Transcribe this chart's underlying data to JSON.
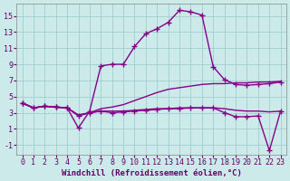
{
  "xlabel": "Windchill (Refroidissement éolien,°C)",
  "background_color": "#cceaea",
  "grid_color": "#9ecece",
  "line_color": "#880088",
  "xlim": [
    -0.5,
    23.5
  ],
  "ylim": [
    -2.2,
    16.5
  ],
  "xticks": [
    0,
    1,
    2,
    3,
    4,
    5,
    6,
    7,
    8,
    9,
    10,
    11,
    12,
    13,
    14,
    15,
    16,
    17,
    18,
    19,
    20,
    21,
    22,
    23
  ],
  "yticks": [
    -1,
    1,
    3,
    5,
    7,
    9,
    11,
    13,
    15
  ],
  "series": [
    {
      "y": [
        4.2,
        3.6,
        3.8,
        3.7,
        3.6,
        1.1,
        3.2,
        8.8,
        9.0,
        9.0,
        11.2,
        12.8,
        13.4,
        14.2,
        15.7,
        15.5,
        15.1,
        8.7,
        7.1,
        6.5,
        6.4,
        6.5,
        6.6,
        6.8
      ],
      "marker": "+",
      "markersize": 5,
      "linewidth": 1.0,
      "zorder": 3
    },
    {
      "y": [
        4.2,
        3.6,
        3.8,
        3.7,
        3.6,
        2.6,
        3.0,
        3.2,
        3.0,
        3.1,
        3.2,
        3.3,
        3.4,
        3.5,
        3.5,
        3.6,
        3.6,
        3.6,
        3.0,
        2.5,
        2.5,
        2.6,
        -1.7,
        3.2
      ],
      "marker": "+",
      "markersize": 5,
      "linewidth": 1.0,
      "zorder": 3
    },
    {
      "y": [
        4.2,
        3.6,
        3.8,
        3.7,
        3.6,
        2.7,
        3.0,
        3.5,
        3.7,
        4.0,
        4.5,
        5.0,
        5.5,
        5.9,
        6.1,
        6.3,
        6.5,
        6.6,
        6.6,
        6.7,
        6.7,
        6.8,
        6.8,
        6.9
      ],
      "marker": null,
      "markersize": 0,
      "linewidth": 1.0,
      "zorder": 2
    },
    {
      "y": [
        4.2,
        3.6,
        3.8,
        3.7,
        3.6,
        2.7,
        3.0,
        3.2,
        3.2,
        3.2,
        3.3,
        3.4,
        3.5,
        3.5,
        3.6,
        3.6,
        3.6,
        3.6,
        3.5,
        3.3,
        3.2,
        3.2,
        3.1,
        3.2
      ],
      "marker": null,
      "markersize": 0,
      "linewidth": 1.0,
      "zorder": 2
    }
  ],
  "xlabel_fontsize": 6.5,
  "tick_fontsize": 6,
  "tick_color": "#660066",
  "label_color": "#660066"
}
